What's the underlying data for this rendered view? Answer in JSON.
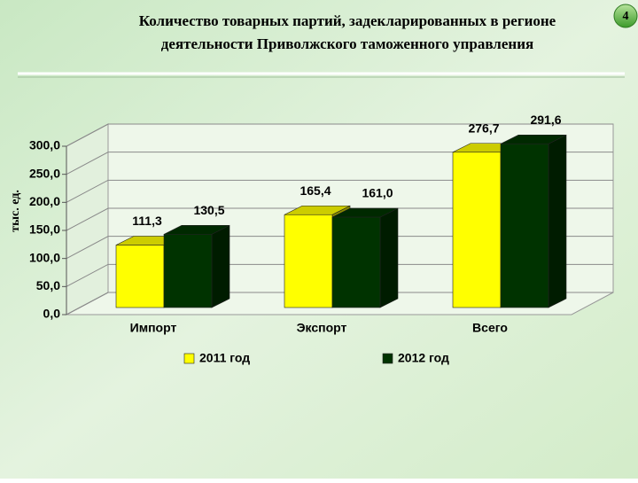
{
  "page_number": "4",
  "chart_data": {
    "type": "bar3d",
    "title": [
      "Количество товарных партий, задекларированных в регионе",
      "деятельности Приволжского таможенного управления"
    ],
    "y_label": "тыс. ед.",
    "categories": [
      "Импорт",
      "Экспорт",
      "Всего"
    ],
    "series": [
      {
        "name": "2011 год",
        "color": "#ffff00",
        "values": [
          111.3,
          165.4,
          276.7
        ],
        "value_labels": [
          "111,3",
          "165,4",
          "276,7"
        ]
      },
      {
        "name": "2012 год",
        "color": "#003300",
        "values": [
          130.5,
          161.0,
          291.6
        ],
        "value_labels": [
          "130,5",
          "161,0",
          "291,6"
        ]
      }
    ],
    "ylim": [
      0,
      300
    ],
    "yticks": [
      {
        "value": 0,
        "label": "0,0"
      },
      {
        "value": 50,
        "label": "50,0"
      },
      {
        "value": 100,
        "label": "100,0"
      },
      {
        "value": 150,
        "label": "150,0"
      },
      {
        "value": 200,
        "label": "200,0"
      },
      {
        "value": 250,
        "label": "250,0"
      },
      {
        "value": 300,
        "label": "300,0"
      }
    ],
    "grid": true
  }
}
